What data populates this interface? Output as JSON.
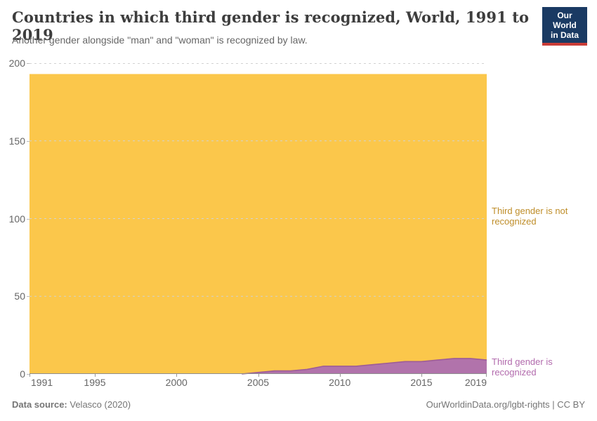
{
  "header": {
    "title": "Countries in which third gender is recognized, World, 1991 to 2019",
    "subtitle": "Another gender alongside \"man\" and \"woman\" is recognized by law.",
    "logo": {
      "line1": "Our World",
      "line2": "in Data",
      "bg_color": "#1a3a63",
      "accent_color": "#c93c37"
    }
  },
  "chart_data": {
    "type": "area",
    "stacked": true,
    "title": "Countries in which third gender is recognized, World, 1991 to 2019",
    "xlabel": "",
    "ylabel": "",
    "x": [
      1991,
      1992,
      1993,
      1994,
      1995,
      1996,
      1997,
      1998,
      1999,
      2000,
      2001,
      2002,
      2003,
      2004,
      2005,
      2006,
      2007,
      2008,
      2009,
      2010,
      2011,
      2012,
      2013,
      2014,
      2015,
      2016,
      2017,
      2018,
      2019
    ],
    "series": [
      {
        "name": "Third gender is recognized",
        "color": "#b173ab",
        "edge_color": "#9d5c97",
        "label_color": "#b26bad",
        "values": [
          0,
          0,
          0,
          0,
          0,
          0,
          0,
          0,
          0,
          0,
          0,
          0,
          0,
          0,
          1,
          2,
          2,
          3,
          5,
          5,
          5,
          6,
          7,
          8,
          8,
          9,
          10,
          10,
          9
        ]
      },
      {
        "name": "Third gender is not recognized",
        "color": "#fbc74b",
        "label_color": "#bf8e2a",
        "values": [
          193,
          193,
          193,
          193,
          193,
          193,
          193,
          193,
          193,
          193,
          193,
          193,
          193,
          193,
          192,
          191,
          191,
          190,
          188,
          188,
          188,
          187,
          186,
          185,
          185,
          184,
          183,
          183,
          184
        ]
      }
    ],
    "total_countries": 193,
    "xlim": [
      1991,
      2019
    ],
    "ylim": [
      0,
      200
    ],
    "xticks": [
      1991,
      1995,
      2000,
      2005,
      2010,
      2015,
      2019
    ],
    "yticks": [
      0,
      50,
      100,
      150,
      200
    ],
    "grid": "horizontal-dashed",
    "legend_position": "right-of-areas"
  },
  "footer": {
    "data_source_label": "Data source:",
    "data_source_value": "Velasco (2020)",
    "attribution": "OurWorldinData.org/lgbt-rights | CC BY"
  }
}
